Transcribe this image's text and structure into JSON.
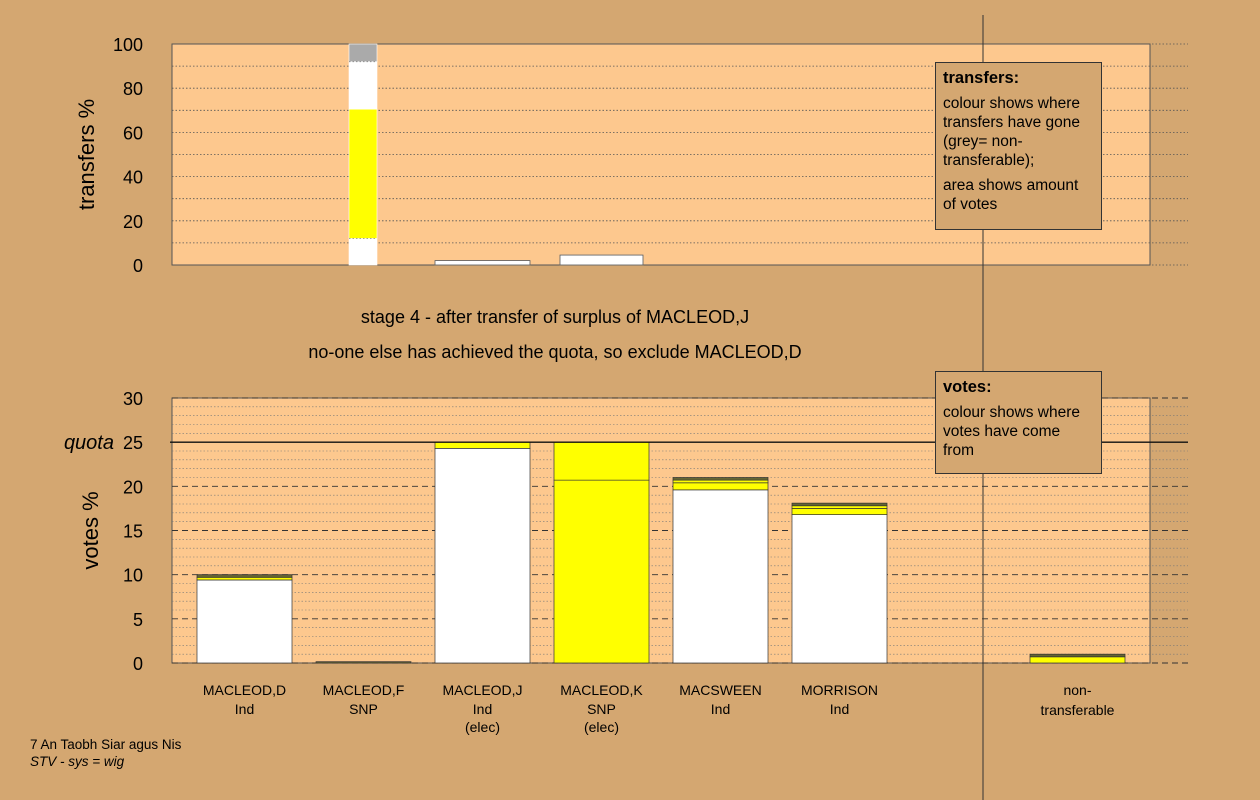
{
  "colors": {
    "background": "#d4a771",
    "plot_bg": "#fdc88e",
    "white": "#ffffff",
    "yellow": "#ffff00",
    "grey": "#aaaaaa",
    "dark_olive": "#666633"
  },
  "stage_lines": [
    "stage 4 - after transfer of surplus of MACLEOD,J",
    "no-one else has achieved the quota, so exclude MACLEOD,D"
  ],
  "transfers_legend": {
    "title": "transfers:",
    "paragraphs": [
      "colour shows where transfers have gone (grey= non-transferable);",
      "area shows amount of votes"
    ]
  },
  "votes_legend": {
    "title": "votes:",
    "paragraphs": [
      "colour shows where votes have come from"
    ]
  },
  "footer": {
    "line1": "7 An Taobh Siar agus Nis",
    "line2": "STV - sys = wig"
  },
  "chart_data": [
    {
      "type": "bar",
      "name": "transfers",
      "ylabel": "transfers %",
      "ylim": [
        0,
        100
      ],
      "yticks": [
        0,
        20,
        40,
        60,
        80,
        100
      ],
      "grid": true,
      "bars": [
        {
          "category": "MACLEOD,J",
          "segments": [
            {
              "color": "white",
              "value": 12
            },
            {
              "color": "yellow",
              "value": 58.5
            },
            {
              "color": "white",
              "value": 21.5
            },
            {
              "color": "grey",
              "value": 8
            }
          ]
        },
        {
          "category": "MACLEOD,K",
          "segments": [
            {
              "color": "white",
              "value": 2
            }
          ]
        },
        {
          "category": "MACSWEEN",
          "segments": [
            {
              "color": "white",
              "value": 4.5
            }
          ]
        }
      ]
    },
    {
      "type": "bar",
      "name": "votes",
      "ylabel": "votes %",
      "ylim": [
        0,
        30
      ],
      "yticks": [
        0,
        5,
        10,
        15,
        20,
        25,
        30
      ],
      "quota": 25,
      "quota_label": "quota",
      "grid": true,
      "categories": [
        {
          "name": "MACLEOD,D",
          "party": "Ind",
          "note": ""
        },
        {
          "name": "MACLEOD,F",
          "party": "SNP",
          "note": ""
        },
        {
          "name": "MACLEOD,J",
          "party": "Ind",
          "note": "(elec)"
        },
        {
          "name": "MACLEOD,K",
          "party": "SNP",
          "note": "(elec)"
        },
        {
          "name": "MACSWEEN",
          "party": "Ind",
          "note": ""
        },
        {
          "name": "MORRISON",
          "party": "Ind",
          "note": ""
        }
      ],
      "nontransferable_label": [
        "non-",
        "transferable"
      ],
      "bars": [
        {
          "category": "MACLEOD,D",
          "segments": [
            {
              "color": "white",
              "value": 9.4
            },
            {
              "color": "yellow",
              "value": 0.3
            },
            {
              "color": "dark_olive",
              "value": 0.3
            }
          ]
        },
        {
          "category": "MACLEOD,F",
          "segments": [
            {
              "color": "dark_olive",
              "value": 0.15
            }
          ]
        },
        {
          "category": "MACLEOD,J",
          "segments": [
            {
              "color": "white",
              "value": 24.3
            },
            {
              "color": "yellow",
              "value": 0.7
            }
          ]
        },
        {
          "category": "MACLEOD,K",
          "segments": [
            {
              "color": "yellow",
              "value": 20.7
            },
            {
              "color": "yellow",
              "value": 4.3
            }
          ]
        },
        {
          "category": "MACSWEEN",
          "segments": [
            {
              "color": "white",
              "value": 19.6
            },
            {
              "color": "yellow",
              "value": 0.8
            },
            {
              "color": "yellow",
              "value": 0.3
            },
            {
              "color": "dark_olive",
              "value": 0.3
            }
          ]
        },
        {
          "category": "MORRISON",
          "segments": [
            {
              "color": "white",
              "value": 16.8
            },
            {
              "color": "yellow",
              "value": 0.7
            },
            {
              "color": "yellow",
              "value": 0.3
            },
            {
              "color": "dark_olive",
              "value": 0.3
            }
          ]
        },
        {
          "category": "non-transferable",
          "segments": [
            {
              "color": "yellow",
              "value": 0.7
            },
            {
              "color": "dark_olive",
              "value": 0.3
            }
          ]
        }
      ]
    }
  ]
}
